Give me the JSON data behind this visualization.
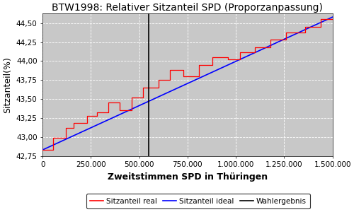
{
  "title": "BTW1998: Relativer Sitzanteil SPD (Proporzanpassung)",
  "xlabel": "Zweitstimmen SPD in Thüringen",
  "ylabel": "Sitzanteil(%)",
  "xlim": [
    0,
    1500000
  ],
  "ylim": [
    42.75,
    44.625
  ],
  "wahlergebnis_x": 550000,
  "y_ideal_start": 42.83,
  "y_ideal_end": 44.58,
  "bg_color": "#c8c8c8",
  "grid_color": "#ffffff",
  "title_fontsize": 10,
  "axis_label_fontsize": 9,
  "tick_fontsize": 7.5,
  "legend_fontsize": 7.5,
  "xtick_labels": [
    "0",
    "250.000",
    "500.000",
    "750.000",
    "1.000.000",
    "1.250.000",
    "1.500.000"
  ],
  "xtick_values": [
    0,
    250000,
    500000,
    750000,
    1000000,
    1250000,
    1500000
  ],
  "ytick_values": [
    42.75,
    43.0,
    43.25,
    43.5,
    43.75,
    44.0,
    44.25,
    44.5
  ],
  "ytick_labels": [
    "42,75",
    "43,00",
    "43,25",
    "43,50",
    "43,75",
    "44,00",
    "44,25",
    "44,50"
  ],
  "legend_labels": [
    "Sitzanteil real",
    "Sitzanteil ideal",
    "Wahlergebnis"
  ],
  "step_x": [
    0,
    55000,
    55000,
    120000,
    120000,
    160000,
    160000,
    230000,
    230000,
    280000,
    280000,
    340000,
    340000,
    400000,
    400000,
    460000,
    460000,
    520000,
    520000,
    600000,
    600000,
    660000,
    660000,
    730000,
    730000,
    810000,
    810000,
    880000,
    880000,
    960000,
    960000,
    1020000,
    1020000,
    1100000,
    1100000,
    1180000,
    1180000,
    1260000,
    1260000,
    1360000,
    1360000,
    1440000,
    1440000,
    1500000
  ],
  "step_y": [
    42.83,
    42.83,
    42.99,
    42.99,
    43.12,
    43.12,
    43.18,
    43.18,
    43.28,
    43.28,
    43.32,
    43.32,
    43.45,
    43.45,
    43.35,
    43.35,
    43.52,
    43.52,
    43.65,
    43.65,
    43.75,
    43.75,
    43.88,
    43.88,
    43.8,
    43.8,
    43.95,
    43.95,
    44.05,
    44.05,
    44.02,
    44.02,
    44.12,
    44.12,
    44.18,
    44.18,
    44.28,
    44.28,
    44.38,
    44.38,
    44.45,
    44.45,
    44.55,
    44.55
  ]
}
